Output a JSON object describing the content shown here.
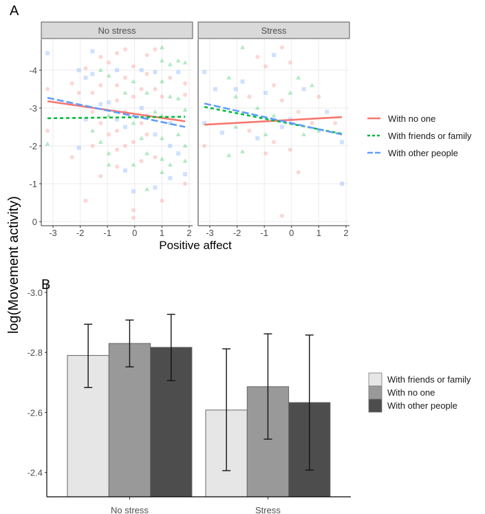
{
  "chart_data": [
    {
      "type": "scatter",
      "panel_label": "A",
      "facets": [
        "No stress",
        "Stress"
      ],
      "xlabel": "Positive affect",
      "ylabel": "log(Movement activity)",
      "xlim": [
        -3.35,
        2.05
      ],
      "ylim": [
        0,
        -4.8
      ],
      "x_ticks": [
        "-3",
        "-2",
        "-1",
        "0",
        "1",
        "2"
      ],
      "y_ticks": [
        "0",
        "-1",
        "-2",
        "-3",
        "-4"
      ],
      "grid": true,
      "legend": {
        "placement": "right",
        "entries": [
          {
            "label": "With no one",
            "color": "#F8766D",
            "style": "solid"
          },
          {
            "label": "With friends or family",
            "color": "#00BA38",
            "style": "dashed"
          },
          {
            "label": "With other people",
            "color": "#619CFF",
            "style": "longdash"
          }
        ]
      },
      "fit_lines": {
        "No stress": [
          {
            "group": 0,
            "x": [
              -3.2,
              1.85
            ],
            "y": [
              -3.18,
              -2.65
            ]
          },
          {
            "group": 1,
            "x": [
              -3.2,
              1.85
            ],
            "y": [
              -2.73,
              -2.77
            ]
          },
          {
            "group": 2,
            "x": [
              -3.2,
              1.85
            ],
            "y": [
              -3.27,
              -2.5
            ]
          }
        ],
        "Stress": [
          {
            "group": 0,
            "x": [
              -3.2,
              1.85
            ],
            "y": [
              -2.56,
              -2.76
            ]
          },
          {
            "group": 1,
            "x": [
              -3.2,
              1.85
            ],
            "y": [
              -3.03,
              -2.32
            ]
          },
          {
            "group": 2,
            "x": [
              -3.2,
              1.85
            ],
            "y": [
              -3.12,
              -2.3
            ]
          }
        ]
      },
      "points": {
        "No stress": [
          [
            -3.2,
            -4.45,
            2
          ],
          [
            -3.2,
            -3.5,
            0
          ],
          [
            -3.2,
            -2.05,
            1
          ],
          [
            -3.2,
            -2.4,
            0
          ],
          [
            -2.3,
            -3.65,
            0
          ],
          [
            -2.3,
            -1.7,
            0
          ],
          [
            -2.05,
            -4.0,
            2
          ],
          [
            -2.05,
            -3.4,
            0
          ],
          [
            -2.05,
            -1.95,
            2
          ],
          [
            -1.8,
            -4.05,
            0
          ],
          [
            -1.8,
            -3.8,
            2
          ],
          [
            -1.8,
            -2.7,
            2
          ],
          [
            -1.8,
            -0.55,
            0
          ],
          [
            -1.55,
            -4.5,
            2
          ],
          [
            -1.55,
            -3.9,
            2
          ],
          [
            -1.55,
            -3.4,
            0
          ],
          [
            -1.55,
            -2.9,
            0
          ],
          [
            -1.55,
            -2.4,
            1
          ],
          [
            -1.55,
            -2.0,
            0
          ],
          [
            -1.25,
            -4.35,
            0
          ],
          [
            -1.25,
            -4.0,
            1
          ],
          [
            -1.25,
            -3.6,
            0
          ],
          [
            -1.25,
            -3.1,
            2
          ],
          [
            -1.25,
            -2.6,
            0
          ],
          [
            -1.25,
            -2.1,
            1
          ],
          [
            -1.25,
            -1.2,
            0
          ],
          [
            -0.95,
            -4.2,
            0
          ],
          [
            -0.95,
            -3.85,
            1
          ],
          [
            -0.95,
            -3.15,
            2
          ],
          [
            -0.95,
            -2.8,
            1
          ],
          [
            -0.95,
            -2.3,
            0
          ],
          [
            -0.95,
            -1.8,
            1
          ],
          [
            -0.95,
            -1.5,
            1
          ],
          [
            -0.65,
            -4.45,
            0
          ],
          [
            -0.65,
            -4.0,
            2
          ],
          [
            -0.65,
            -3.6,
            0
          ],
          [
            -0.65,
            -3.2,
            0
          ],
          [
            -0.65,
            -2.7,
            2
          ],
          [
            -0.65,
            -2.4,
            0
          ],
          [
            -0.65,
            -1.9,
            0
          ],
          [
            -0.65,
            -1.45,
            0
          ],
          [
            -0.35,
            -4.55,
            0
          ],
          [
            -0.35,
            -3.8,
            0
          ],
          [
            -0.35,
            -3.4,
            1
          ],
          [
            -0.35,
            -2.9,
            0
          ],
          [
            -0.35,
            -2.5,
            2
          ],
          [
            -0.35,
            -2.0,
            0
          ],
          [
            -0.35,
            -1.35,
            2
          ],
          [
            -0.05,
            -4.1,
            0
          ],
          [
            -0.05,
            -3.7,
            1
          ],
          [
            -0.05,
            -3.3,
            0
          ],
          [
            -0.05,
            -2.6,
            1
          ],
          [
            -0.05,
            -2.1,
            0
          ],
          [
            -0.05,
            -1.5,
            1
          ],
          [
            -0.05,
            -0.8,
            2
          ],
          [
            -0.05,
            -0.3,
            0
          ],
          [
            -0.05,
            -0.1,
            0
          ],
          [
            0.25,
            -4.0,
            2
          ],
          [
            0.25,
            -3.5,
            0
          ],
          [
            0.25,
            -3.0,
            2
          ],
          [
            0.25,
            -2.6,
            0
          ],
          [
            0.25,
            -2.2,
            1
          ],
          [
            0.25,
            -1.6,
            0
          ],
          [
            0.45,
            -4.4,
            0
          ],
          [
            0.45,
            -3.9,
            0
          ],
          [
            0.45,
            -3.4,
            1
          ],
          [
            0.45,
            -2.8,
            2
          ],
          [
            0.45,
            -2.3,
            0
          ],
          [
            0.45,
            -1.8,
            1
          ],
          [
            0.45,
            -0.85,
            1
          ],
          [
            0.75,
            -4.55,
            0
          ],
          [
            0.75,
            -3.95,
            2
          ],
          [
            0.75,
            -3.5,
            0
          ],
          [
            0.75,
            -2.9,
            1
          ],
          [
            0.75,
            -2.3,
            2
          ],
          [
            0.75,
            -1.7,
            0
          ],
          [
            0.75,
            -0.9,
            2
          ],
          [
            1.0,
            -4.6,
            1
          ],
          [
            1.0,
            -4.25,
            1
          ],
          [
            1.0,
            -3.7,
            1
          ],
          [
            1.0,
            -3.3,
            0
          ],
          [
            1.0,
            -2.8,
            1
          ],
          [
            1.0,
            -2.2,
            1
          ],
          [
            1.0,
            -1.65,
            1
          ],
          [
            1.0,
            -1.3,
            1
          ],
          [
            1.0,
            -0.55,
            0
          ],
          [
            1.3,
            -4.15,
            1
          ],
          [
            1.3,
            -3.8,
            0
          ],
          [
            1.3,
            -3.3,
            1
          ],
          [
            1.3,
            -2.6,
            2
          ],
          [
            1.3,
            -2.0,
            2
          ],
          [
            1.3,
            -1.5,
            1
          ],
          [
            1.3,
            -1.15,
            2
          ],
          [
            1.6,
            -4.25,
            1
          ],
          [
            1.6,
            -3.95,
            2
          ],
          [
            1.6,
            -3.25,
            1
          ],
          [
            1.6,
            -2.3,
            1
          ],
          [
            1.6,
            -1.8,
            2
          ],
          [
            1.85,
            -4.2,
            1
          ],
          [
            1.85,
            -3.65,
            0
          ],
          [
            1.85,
            -3.35,
            0
          ],
          [
            1.85,
            -2.95,
            1
          ],
          [
            1.85,
            -2.0,
            1
          ],
          [
            1.85,
            -1.6,
            1
          ],
          [
            1.85,
            -1.25,
            2
          ],
          [
            1.85,
            -1.0,
            0
          ]
        ],
        "Stress": [
          [
            -3.2,
            -3.95,
            2
          ],
          [
            -3.2,
            -2.6,
            2
          ],
          [
            -3.2,
            -2.0,
            0
          ],
          [
            -2.8,
            -3.5,
            2
          ],
          [
            -2.55,
            -2.35,
            2
          ],
          [
            -2.3,
            -3.8,
            1
          ],
          [
            -2.3,
            -1.75,
            1
          ],
          [
            -2.05,
            -3.5,
            2
          ],
          [
            -2.05,
            -3.3,
            1
          ],
          [
            -2.05,
            -2.5,
            1
          ],
          [
            -1.8,
            -4.6,
            1
          ],
          [
            -1.8,
            -3.7,
            2
          ],
          [
            -1.8,
            -1.85,
            1
          ],
          [
            -1.55,
            -3.3,
            0
          ],
          [
            -1.55,
            -2.4,
            0
          ],
          [
            -1.25,
            -4.35,
            0
          ],
          [
            -1.25,
            -3.0,
            1
          ],
          [
            -1.25,
            -2.2,
            2
          ],
          [
            -0.95,
            -4.1,
            0
          ],
          [
            -0.95,
            -3.4,
            2
          ],
          [
            -0.95,
            -2.3,
            1
          ],
          [
            -0.95,
            -1.8,
            0
          ],
          [
            -0.65,
            -4.4,
            2
          ],
          [
            -0.65,
            -3.6,
            0
          ],
          [
            -0.65,
            -2.8,
            1
          ],
          [
            -0.65,
            -2.1,
            0
          ],
          [
            -0.35,
            -4.6,
            0
          ],
          [
            -0.35,
            -3.2,
            0
          ],
          [
            -0.35,
            -2.5,
            2
          ],
          [
            -0.35,
            -0.15,
            0
          ],
          [
            -0.05,
            -4.2,
            0
          ],
          [
            -0.05,
            -3.4,
            1
          ],
          [
            -0.05,
            -2.7,
            2
          ],
          [
            -0.05,
            -1.9,
            0
          ],
          [
            0.25,
            -3.8,
            1
          ],
          [
            0.25,
            -2.9,
            0
          ],
          [
            0.25,
            -1.3,
            0
          ],
          [
            0.45,
            -3.5,
            2
          ],
          [
            0.45,
            -2.3,
            1
          ],
          [
            0.75,
            -3.6,
            1
          ],
          [
            0.75,
            -2.6,
            0
          ],
          [
            1.0,
            -3.3,
            0
          ],
          [
            1.0,
            -2.4,
            1
          ],
          [
            1.3,
            -2.9,
            2
          ],
          [
            1.6,
            -2.6,
            0
          ],
          [
            1.85,
            -2.1,
            2
          ],
          [
            1.85,
            -1.0,
            2
          ]
        ]
      }
    },
    {
      "type": "bar",
      "panel_label": "B",
      "categories": [
        "No stress",
        "Stress"
      ],
      "ylabel": "log(Movement activity)",
      "ylim": [
        -2.32,
        -3.05
      ],
      "y_ticks": [
        "-3.0",
        "-2.8",
        "-2.6",
        "-2.4"
      ],
      "y_tick_values": [
        -3.0,
        -2.8,
        -2.6,
        -2.4
      ],
      "grid": false,
      "legend": {
        "placement": "right"
      },
      "series": [
        {
          "name": "With friends or family",
          "color": "#E6E6E6",
          "values": [
            -2.79,
            -2.608
          ],
          "err_low": [
            -2.683,
            -2.406
          ],
          "err_high": [
            -2.894,
            -2.812
          ]
        },
        {
          "name": "With no one",
          "color": "#999999",
          "values": [
            -2.83,
            -2.686
          ],
          "err_low": [
            -2.752,
            -2.511
          ],
          "err_high": [
            -2.908,
            -2.862
          ]
        },
        {
          "name": "With other people",
          "color": "#4D4D4D",
          "values": [
            -2.817,
            -2.633
          ],
          "err_low": [
            -2.706,
            -2.408
          ],
          "err_high": [
            -2.927,
            -2.858
          ]
        }
      ]
    }
  ]
}
